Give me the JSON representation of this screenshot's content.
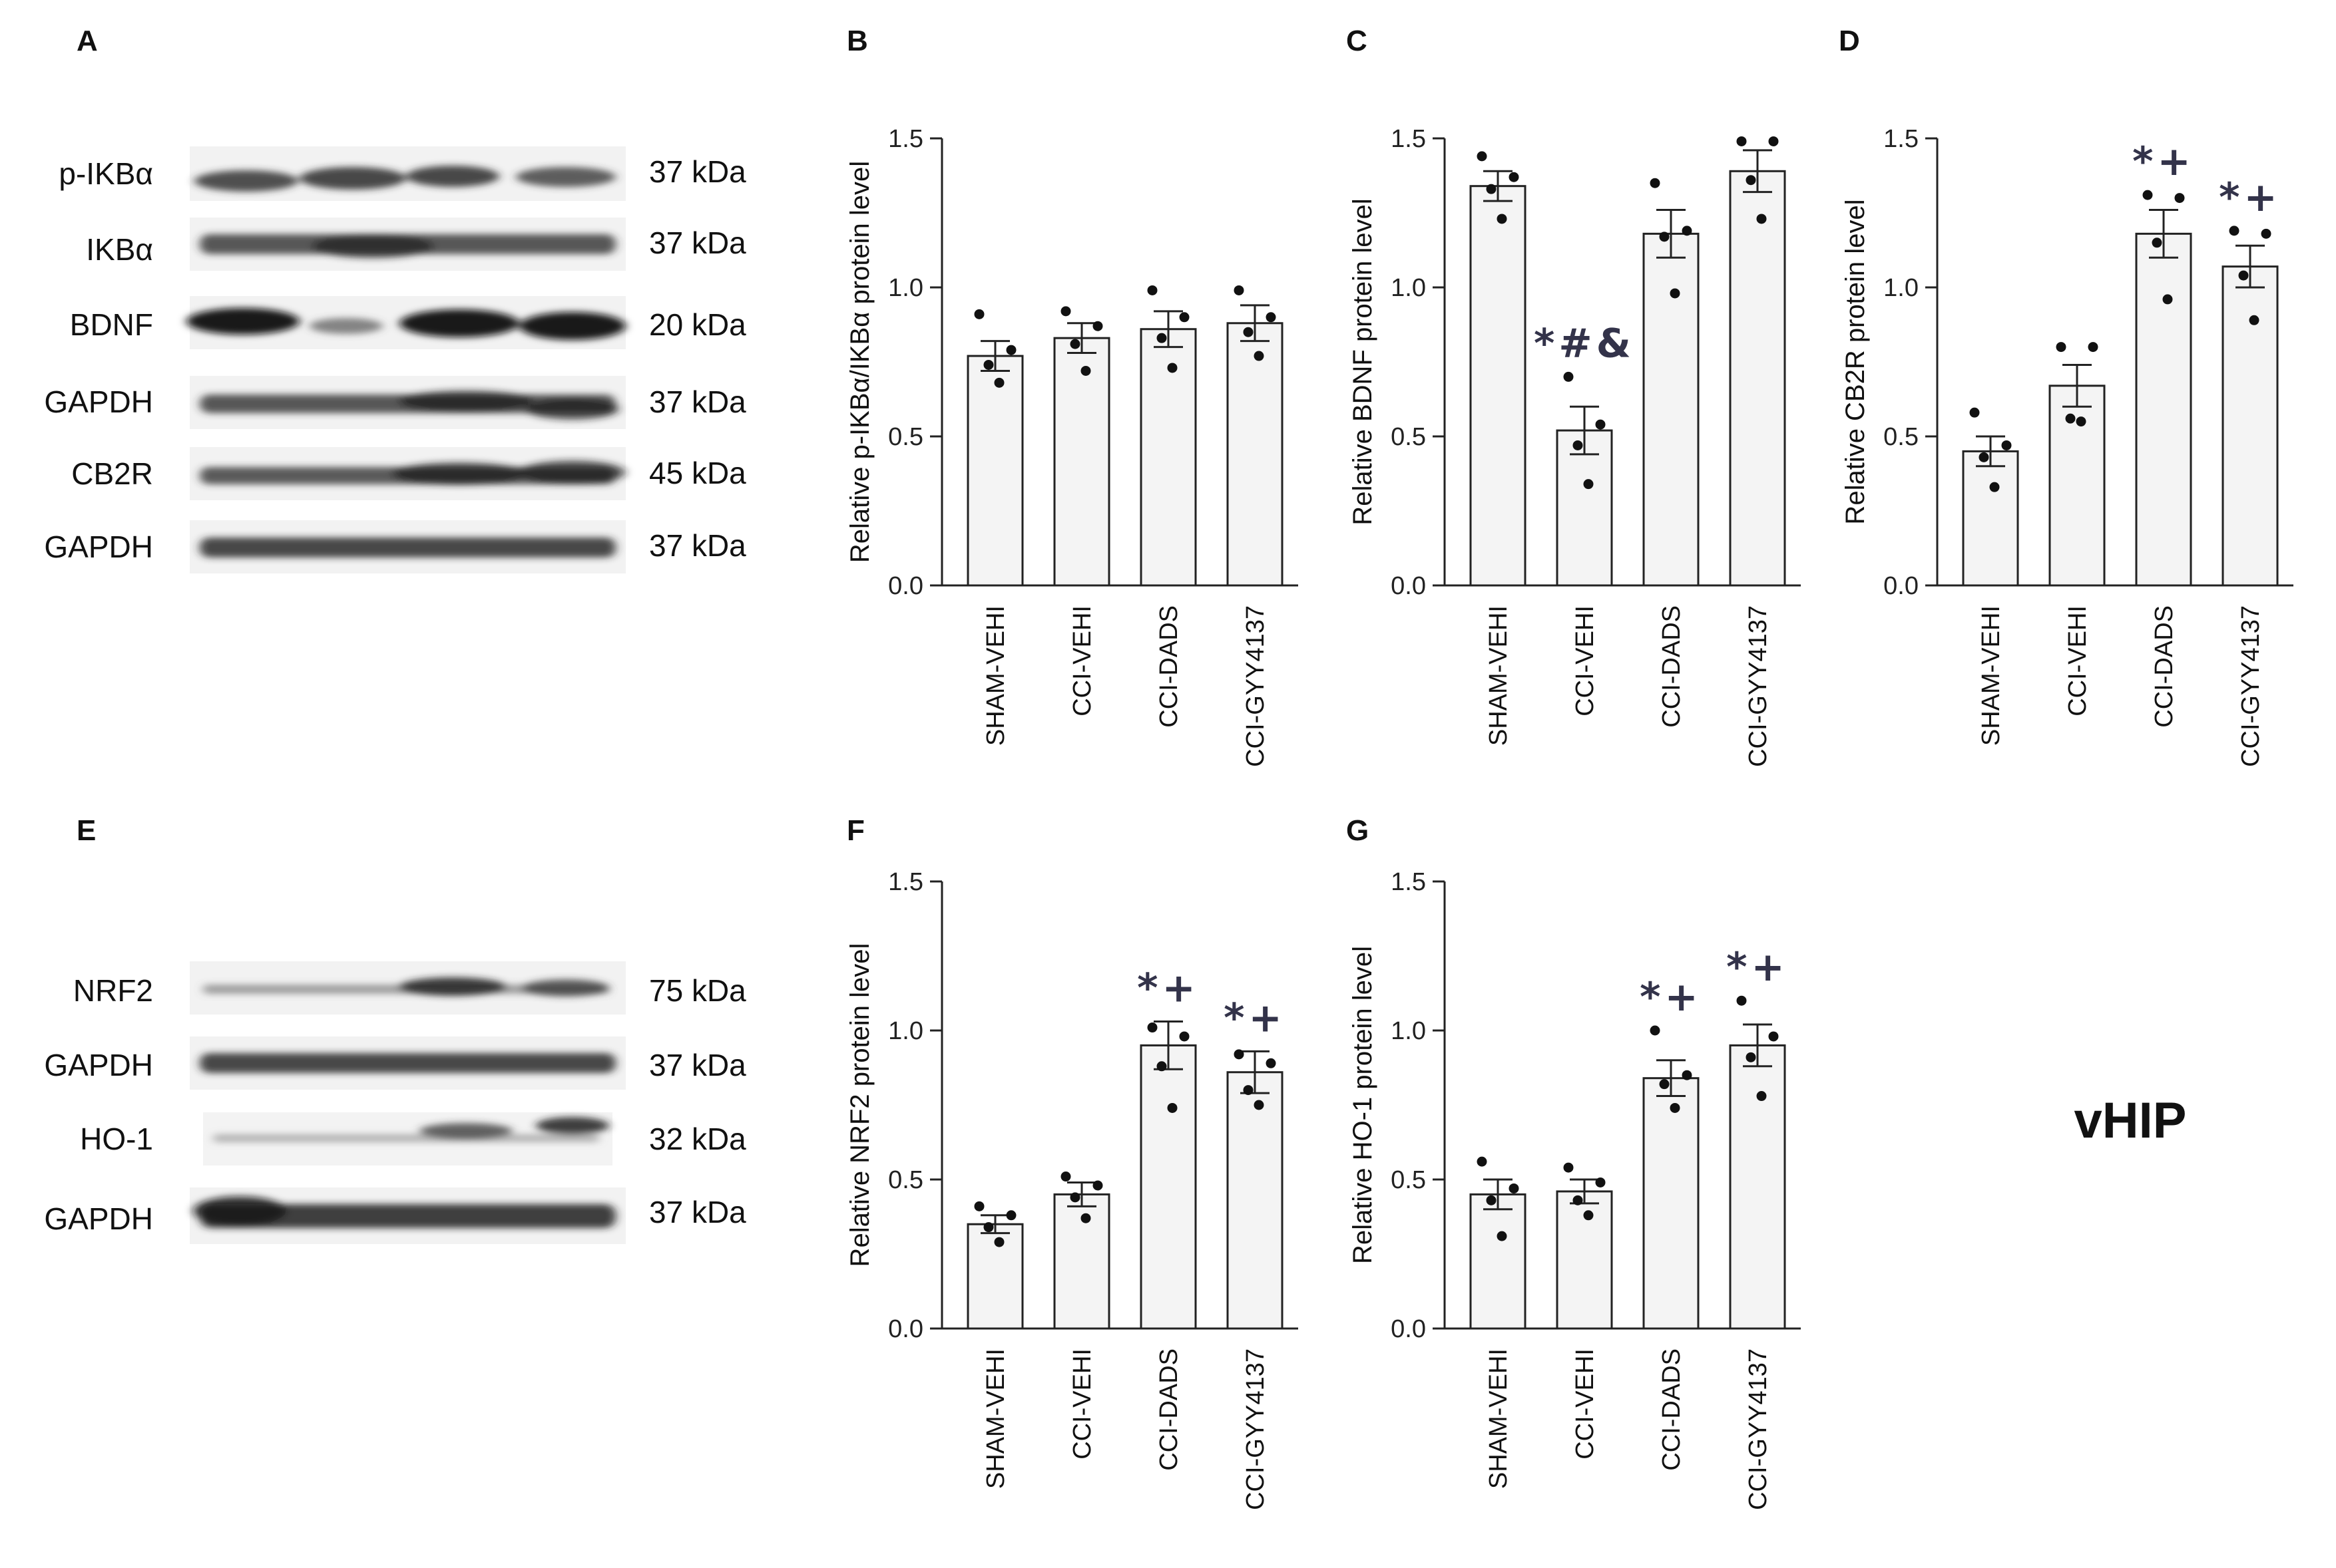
{
  "region_label": "vHIP",
  "categories": [
    "SHAM-VEHI",
    "CCI-VEHI",
    "CCI-DADS",
    "CCI-GYY4137"
  ],
  "blots": [
    {
      "panel": "A",
      "rows": [
        {
          "label": "p-IKBα",
          "kda": "37 kDa"
        },
        {
          "label": "IKBα",
          "kda": "37 kDa"
        },
        {
          "label": "BDNF",
          "kda": "20 kDa"
        },
        {
          "label": "GAPDH",
          "kda": "37 kDa"
        },
        {
          "label": "CB2R",
          "kda": "45 kDa"
        },
        {
          "label": "GAPDH",
          "kda": "37 kDa"
        }
      ]
    },
    {
      "panel": "E",
      "rows": [
        {
          "label": "NRF2",
          "kda": "75 kDa"
        },
        {
          "label": "GAPDH",
          "kda": "37 kDa"
        },
        {
          "label": "HO-1",
          "kda": "32 kDa"
        },
        {
          "label": "GAPDH",
          "kda": "37 kDa"
        }
      ]
    }
  ],
  "chart_data": [
    {
      "panel": "B",
      "type": "bar",
      "ylabel": "Relative p-IKBα/IKBα protein level",
      "ylim": [
        0,
        1.5
      ],
      "yticks": [
        "0.0",
        "0.5",
        "1.0",
        "1.5"
      ],
      "categories": [
        "SHAM-VEHI",
        "CCI-VEHI",
        "CCI-DADS",
        "CCI-GYY4137"
      ],
      "values": [
        0.77,
        0.83,
        0.86,
        0.88
      ],
      "sem": [
        0.05,
        0.05,
        0.06,
        0.06
      ],
      "points": [
        [
          0.91,
          0.79,
          0.74,
          0.68
        ],
        [
          0.92,
          0.87,
          0.81,
          0.72
        ],
        [
          0.99,
          0.9,
          0.83,
          0.73
        ],
        [
          0.99,
          0.9,
          0.85,
          0.77
        ]
      ],
      "annotations": [
        "",
        "",
        "",
        ""
      ]
    },
    {
      "panel": "C",
      "type": "bar",
      "ylabel": "Relative BDNF protein level",
      "ylim": [
        0,
        1.5
      ],
      "yticks": [
        "0.0",
        "0.5",
        "1.0",
        "1.5"
      ],
      "categories": [
        "SHAM-VEHI",
        "CCI-VEHI",
        "CCI-DADS",
        "CCI-GYY4137"
      ],
      "values": [
        1.34,
        0.52,
        1.18,
        1.39
      ],
      "sem": [
        0.05,
        0.08,
        0.08,
        0.07
      ],
      "points": [
        [
          1.44,
          1.37,
          1.33,
          1.23
        ],
        [
          0.7,
          0.54,
          0.47,
          0.34
        ],
        [
          1.35,
          1.19,
          1.17,
          0.98
        ],
        [
          1.49,
          1.49,
          1.36,
          1.23
        ]
      ],
      "annotations": [
        "",
        "*#&",
        "",
        ""
      ]
    },
    {
      "panel": "D",
      "type": "bar",
      "ylabel": "Relative CB2R protein level",
      "ylim": [
        0,
        1.5
      ],
      "yticks": [
        "0.0",
        "0.5",
        "1.0",
        "1.5"
      ],
      "categories": [
        "SHAM-VEHI",
        "CCI-VEHI",
        "CCI-DADS",
        "CCI-GYY4137"
      ],
      "values": [
        0.45,
        0.67,
        1.18,
        1.07
      ],
      "sem": [
        0.05,
        0.07,
        0.08,
        0.07
      ],
      "points": [
        [
          0.58,
          0.47,
          0.43,
          0.33
        ],
        [
          0.8,
          0.8,
          0.56,
          0.55
        ],
        [
          1.31,
          1.3,
          1.15,
          0.96
        ],
        [
          1.19,
          1.18,
          1.04,
          0.89
        ]
      ],
      "annotations": [
        "",
        "",
        "*+",
        "*+"
      ]
    },
    {
      "panel": "F",
      "type": "bar",
      "ylabel": "Relative NRF2 protein level",
      "ylim": [
        0,
        1.5
      ],
      "yticks": [
        "0.0",
        "0.5",
        "1.0",
        "1.5"
      ],
      "categories": [
        "SHAM-VEHI",
        "CCI-VEHI",
        "CCI-DADS",
        "CCI-GYY4137"
      ],
      "values": [
        0.35,
        0.45,
        0.95,
        0.86
      ],
      "sem": [
        0.03,
        0.04,
        0.08,
        0.07
      ],
      "points": [
        [
          0.41,
          0.38,
          0.34,
          0.29
        ],
        [
          0.51,
          0.48,
          0.44,
          0.37
        ],
        [
          1.01,
          0.98,
          0.88,
          0.74
        ],
        [
          0.92,
          0.89,
          0.8,
          0.75
        ]
      ],
      "annotations": [
        "",
        "",
        "*+",
        "*+"
      ]
    },
    {
      "panel": "G",
      "type": "bar",
      "ylabel": "Relative HO-1 protein level",
      "ylim": [
        0,
        1.5
      ],
      "yticks": [
        "0.0",
        "0.5",
        "1.0",
        "1.5"
      ],
      "categories": [
        "SHAM-VEHI",
        "CCI-VEHI",
        "CCI-DADS",
        "CCI-GYY4137"
      ],
      "values": [
        0.45,
        0.46,
        0.84,
        0.95
      ],
      "sem": [
        0.05,
        0.04,
        0.06,
        0.07
      ],
      "points": [
        [
          0.56,
          0.47,
          0.43,
          0.31
        ],
        [
          0.54,
          0.49,
          0.43,
          0.38
        ],
        [
          1.0,
          0.85,
          0.82,
          0.74
        ],
        [
          1.1,
          0.98,
          0.91,
          0.78
        ]
      ],
      "annotations": [
        "",
        "",
        "*+",
        "*+"
      ]
    }
  ]
}
